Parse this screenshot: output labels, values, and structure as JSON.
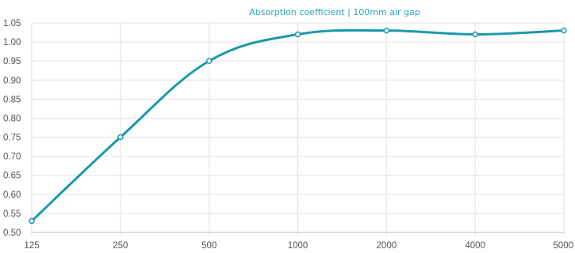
{
  "colors": {
    "accent": "#1a9aaa",
    "title": "#2aa6bd",
    "point_fill": "#ffffff",
    "grid": "#e3e3e3",
    "tick_text": "#555555"
  },
  "chart_data": {
    "type": "line",
    "title": "Absorption coefficient | 100mm air gap",
    "xlabel": "",
    "ylabel": "",
    "categories": [
      "125",
      "250",
      "500",
      "1000",
      "2000",
      "4000",
      "5000"
    ],
    "series": [
      {
        "values": [
          0.53,
          0.75,
          0.95,
          1.02,
          1.03,
          1.02,
          1.03
        ]
      }
    ],
    "ylim": [
      0.5,
      1.05
    ],
    "yticks": [
      "0.50",
      "0.55",
      "0.60",
      "0.65",
      "0.70",
      "0.75",
      "0.80",
      "0.85",
      "0.90",
      "0.95",
      "1.00",
      "1.05"
    ],
    "grid": true,
    "legend": "none",
    "curve": "smooth"
  }
}
